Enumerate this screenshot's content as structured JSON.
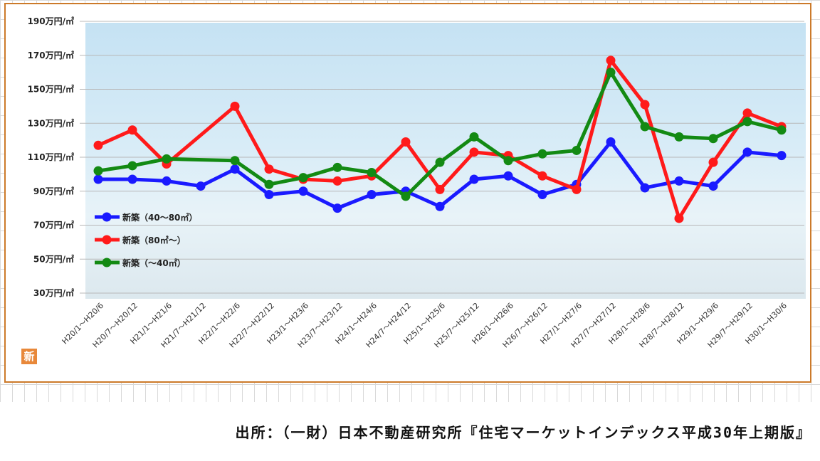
{
  "source_text": "出所：（一財）日本不動産研究所『住宅マーケットインデックス平成30年上期版』",
  "badge_text": "新",
  "chart_data": {
    "type": "line",
    "ylim": [
      30,
      190
    ],
    "yticks": [
      30,
      50,
      70,
      90,
      110,
      130,
      150,
      170,
      190
    ],
    "ytick_labels": [
      "30万円/㎡",
      "50万円/㎡",
      "70万円/㎡",
      "90万円/㎡",
      "110万円/㎡",
      "130万円/㎡",
      "150万円/㎡",
      "170万円/㎡",
      "190万円/㎡"
    ],
    "categories": [
      "H20/1～H20/6",
      "H20/7～H20/12",
      "H21/1～H21/6",
      "H21/7～H21/12",
      "H22/1～H22/6",
      "H22/7～H22/12",
      "H23/1～H23/6",
      "H23/7～H23/12",
      "H24/1～H24/6",
      "H24/7～H24/12",
      "H25/1～H25/6",
      "H25/7～H25/12",
      "H26/1～H26/6",
      "H26/7～H26/12",
      "H27/1～H27/6",
      "H27/7～H27/12",
      "H28/1～H28/6",
      "H28/7～H28/12",
      "H29/1～H29/6",
      "H29/7～H29/12",
      "H30/1～H30/6"
    ],
    "series": [
      {
        "name": "新築（40～80㎡）",
        "color": "#1a1aff",
        "values": [
          97,
          97,
          96,
          93,
          103,
          88,
          90,
          80,
          88,
          90,
          81,
          97,
          99,
          88,
          94,
          119,
          92,
          96,
          93,
          113,
          111
        ]
      },
      {
        "name": "新築（80㎡～）",
        "color": "#ff1a1a",
        "values": [
          117,
          126,
          106,
          null,
          140,
          103,
          97,
          96,
          99,
          119,
          91,
          113,
          111,
          99,
          91,
          167,
          141,
          74,
          107,
          136,
          128
        ]
      },
      {
        "name": "新築（～40㎡）",
        "color": "#138a13",
        "values": [
          102,
          105,
          109,
          null,
          108,
          94,
          98,
          104,
          101,
          87,
          107,
          122,
          108,
          112,
          114,
          160,
          128,
          122,
          121,
          131,
          126
        ]
      }
    ],
    "legend_position": "left",
    "grid": true
  }
}
